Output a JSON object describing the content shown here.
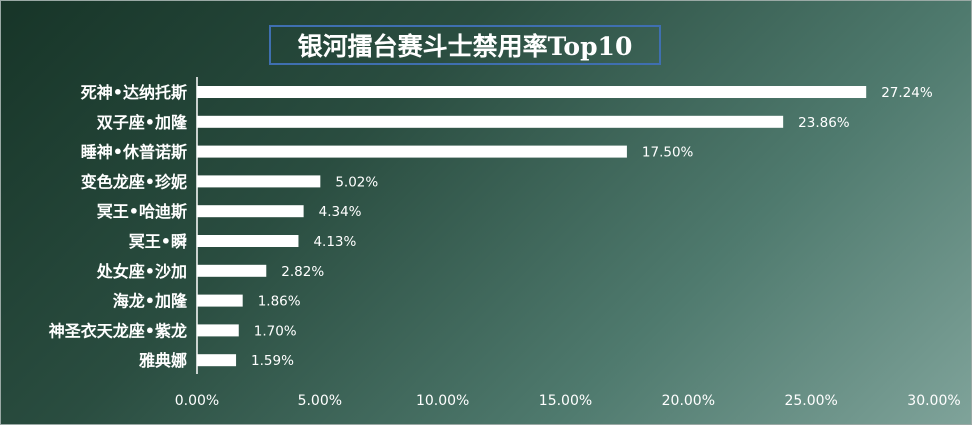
{
  "title": "银河擂台赛斗士禁用率Top10",
  "colors": {
    "bar": "#ffffff",
    "axis": "#ffffff",
    "title_border": "#3f6fb0"
  },
  "chart_data": {
    "type": "bar",
    "orientation": "horizontal",
    "title": "银河擂台赛斗士禁用率Top10",
    "categories": [
      "死神•达纳托斯",
      "双子座•加隆",
      "睡神•休普诺斯",
      "变色龙座•珍妮",
      "冥王•哈迪斯",
      "冥王•瞬",
      "处女座•沙加",
      "海龙•加隆",
      "神圣衣天龙座•紫龙",
      "雅典娜"
    ],
    "values": [
      27.24,
      23.86,
      17.5,
      5.02,
      4.34,
      4.13,
      2.82,
      1.86,
      1.7,
      1.59
    ],
    "value_labels": [
      "27.24%",
      "23.86%",
      "17.50%",
      "5.02%",
      "4.34%",
      "4.13%",
      "2.82%",
      "1.86%",
      "1.70%",
      "1.59%"
    ],
    "xlim": [
      0,
      30
    ],
    "x_ticks": [
      0,
      5,
      10,
      15,
      20,
      25,
      30
    ],
    "x_tick_labels": [
      "0.00%",
      "5.00%",
      "10.00%",
      "15.00%",
      "20.00%",
      "25.00%",
      "30.00%"
    ],
    "xlabel": "",
    "ylabel": "",
    "grid": false,
    "legend": "none"
  }
}
